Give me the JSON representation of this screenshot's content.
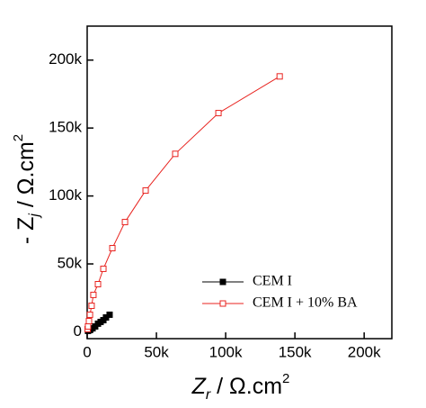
{
  "chart_data": {
    "type": "line",
    "xlabel": [
      "Z",
      "r",
      " / Ω.cm",
      "2"
    ],
    "ylabel": [
      "- Z",
      "j",
      " / Ω.cm",
      "2"
    ],
    "series": [
      {
        "name": "CEM I",
        "color": "#000000",
        "marker": "filled-square",
        "x": [
          600,
          1900,
          3900,
          5800,
          7800,
          9700,
          11700,
          13600,
          16200
        ],
        "values": [
          700,
          1300,
          2600,
          4000,
          6000,
          7300,
          8600,
          10600,
          12600
        ]
      },
      {
        "name": "CEM I + 10% BA",
        "color": "#e8231f",
        "marker": "open-square",
        "x": [
          300,
          600,
          1300,
          2000,
          3200,
          4500,
          7800,
          11700,
          18200,
          27300,
          42200,
          63600,
          94800,
          139000
        ],
        "values": [
          2000,
          4000,
          7900,
          12600,
          19200,
          27200,
          35100,
          46400,
          61600,
          80800,
          104000,
          131000,
          161000,
          188000
        ]
      }
    ],
    "xlim": [
      0,
      220000
    ],
    "ylim": [
      -5000,
      225000
    ],
    "xticks": [
      0,
      {
        "value": 50000,
        "label": "50k"
      },
      {
        "value": 100000,
        "label": "100k"
      },
      {
        "value": 150000,
        "label": "150k"
      },
      {
        "value": 200000,
        "label": "200k"
      }
    ],
    "yticks": [
      0,
      {
        "value": 50000,
        "label": "50k"
      },
      {
        "value": 100000,
        "label": "100k"
      },
      {
        "value": 150000,
        "label": "150k"
      },
      {
        "value": 200000,
        "label": "200k"
      }
    ],
    "grid": false,
    "legend": "lower right"
  }
}
